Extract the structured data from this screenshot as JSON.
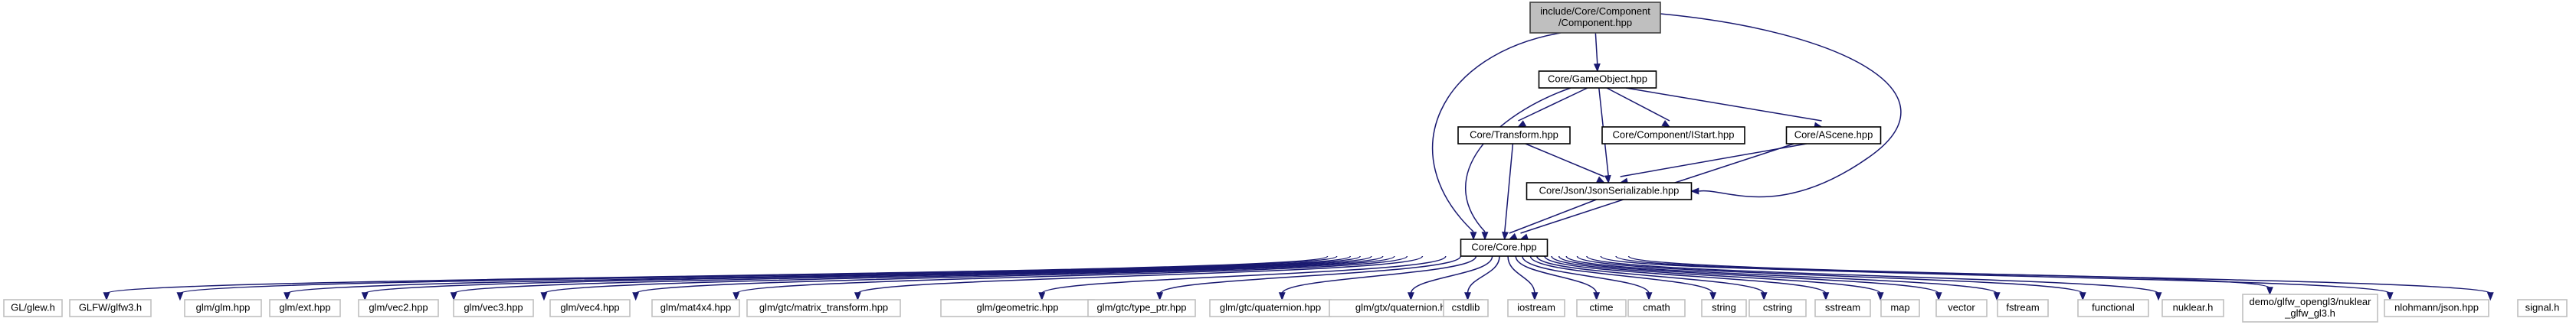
{
  "root_node": {
    "id": "component",
    "lines": [
      "include/Core/Component",
      "/Component.hpp"
    ]
  },
  "project_nodes": [
    {
      "id": "gameobject",
      "lines": [
        "Core/GameObject.hpp"
      ]
    },
    {
      "id": "transform",
      "lines": [
        "Core/Transform.hpp"
      ]
    },
    {
      "id": "istart",
      "lines": [
        "Core/Component/IStart.hpp"
      ]
    },
    {
      "id": "ascene",
      "lines": [
        "Core/AScene.hpp"
      ]
    },
    {
      "id": "jsonserializable",
      "lines": [
        "Core/Json/JsonSerializable.hpp"
      ]
    },
    {
      "id": "core",
      "lines": [
        "Core/Core.hpp"
      ]
    }
  ],
  "external_nodes": [
    {
      "id": "glew",
      "lines": [
        "GL/glew.h"
      ]
    },
    {
      "id": "glfw3",
      "lines": [
        "GLFW/glfw3.h"
      ]
    },
    {
      "id": "glm",
      "lines": [
        "glm/glm.hpp"
      ]
    },
    {
      "id": "glm-ext",
      "lines": [
        "glm/ext.hpp"
      ]
    },
    {
      "id": "glm-vec2",
      "lines": [
        "glm/vec2.hpp"
      ]
    },
    {
      "id": "glm-vec3",
      "lines": [
        "glm/vec3.hpp"
      ]
    },
    {
      "id": "glm-vec4",
      "lines": [
        "glm/vec4.hpp"
      ]
    },
    {
      "id": "glm-mat4x4",
      "lines": [
        "glm/mat4x4.hpp"
      ]
    },
    {
      "id": "glm-matrix-transform",
      "lines": [
        "glm/gtc/matrix_transform.hpp"
      ]
    },
    {
      "id": "glm-geometric",
      "lines": [
        "glm/geometric.hpp"
      ]
    },
    {
      "id": "glm-type-ptr",
      "lines": [
        "glm/gtc/type_ptr.hpp"
      ]
    },
    {
      "id": "glm-gtc-quaternion",
      "lines": [
        "glm/gtc/quaternion.hpp"
      ]
    },
    {
      "id": "glm-gtx-quaternion",
      "lines": [
        "glm/gtx/quaternion.hpp"
      ]
    },
    {
      "id": "cstdlib",
      "lines": [
        "cstdlib"
      ]
    },
    {
      "id": "iostream",
      "lines": [
        "iostream"
      ]
    },
    {
      "id": "ctime",
      "lines": [
        "ctime"
      ]
    },
    {
      "id": "cmath",
      "lines": [
        "cmath"
      ]
    },
    {
      "id": "string",
      "lines": [
        "string"
      ]
    },
    {
      "id": "cstring",
      "lines": [
        "cstring"
      ]
    },
    {
      "id": "sstream",
      "lines": [
        "sstream"
      ]
    },
    {
      "id": "map",
      "lines": [
        "map"
      ]
    },
    {
      "id": "vector",
      "lines": [
        "vector"
      ]
    },
    {
      "id": "fstream",
      "lines": [
        "fstream"
      ]
    },
    {
      "id": "functional",
      "lines": [
        "functional"
      ]
    },
    {
      "id": "nuklear",
      "lines": [
        "nuklear.h"
      ]
    },
    {
      "id": "nuklear-glfw",
      "lines": [
        "demo/glfw_opengl3/nuklear",
        "_glfw_gl3.h"
      ]
    },
    {
      "id": "nlohmann-json",
      "lines": [
        "nlohmann/json.hpp"
      ]
    },
    {
      "id": "signal",
      "lines": [
        "signal.h"
      ]
    }
  ],
  "edges": [
    [
      "component",
      "gameobject"
    ],
    [
      "component",
      "core"
    ],
    [
      "component",
      "jsonserializable"
    ],
    [
      "gameobject",
      "transform"
    ],
    [
      "gameobject",
      "istart"
    ],
    [
      "gameobject",
      "ascene"
    ],
    [
      "gameobject",
      "jsonserializable"
    ],
    [
      "gameobject",
      "core"
    ],
    [
      "transform",
      "jsonserializable"
    ],
    [
      "transform",
      "core"
    ],
    [
      "ascene",
      "jsonserializable"
    ],
    [
      "ascene",
      "core"
    ],
    [
      "jsonserializable",
      "core"
    ],
    [
      "core",
      "glew"
    ],
    [
      "core",
      "glfw3"
    ],
    [
      "core",
      "glm"
    ],
    [
      "core",
      "glm-ext"
    ],
    [
      "core",
      "glm-vec2"
    ],
    [
      "core",
      "glm-vec3"
    ],
    [
      "core",
      "glm-vec4"
    ],
    [
      "core",
      "glm-mat4x4"
    ],
    [
      "core",
      "glm-matrix-transform"
    ],
    [
      "core",
      "glm-geometric"
    ],
    [
      "core",
      "glm-type-ptr"
    ],
    [
      "core",
      "glm-gtc-quaternion"
    ],
    [
      "core",
      "glm-gtx-quaternion"
    ],
    [
      "core",
      "cstdlib"
    ],
    [
      "core",
      "iostream"
    ],
    [
      "core",
      "ctime"
    ],
    [
      "core",
      "cmath"
    ],
    [
      "core",
      "string"
    ],
    [
      "core",
      "cstring"
    ],
    [
      "core",
      "sstream"
    ],
    [
      "core",
      "map"
    ],
    [
      "core",
      "vector"
    ],
    [
      "core",
      "fstream"
    ],
    [
      "core",
      "functional"
    ],
    [
      "core",
      "nuklear"
    ],
    [
      "core",
      "nuklear-glfw"
    ],
    [
      "core",
      "nlohmann-json"
    ],
    [
      "core",
      "signal"
    ]
  ],
  "colors": {
    "edge": "#191970",
    "root_fill": "#bfbfbf",
    "external_border": "#bfbfbf",
    "node_border": "#000000"
  }
}
